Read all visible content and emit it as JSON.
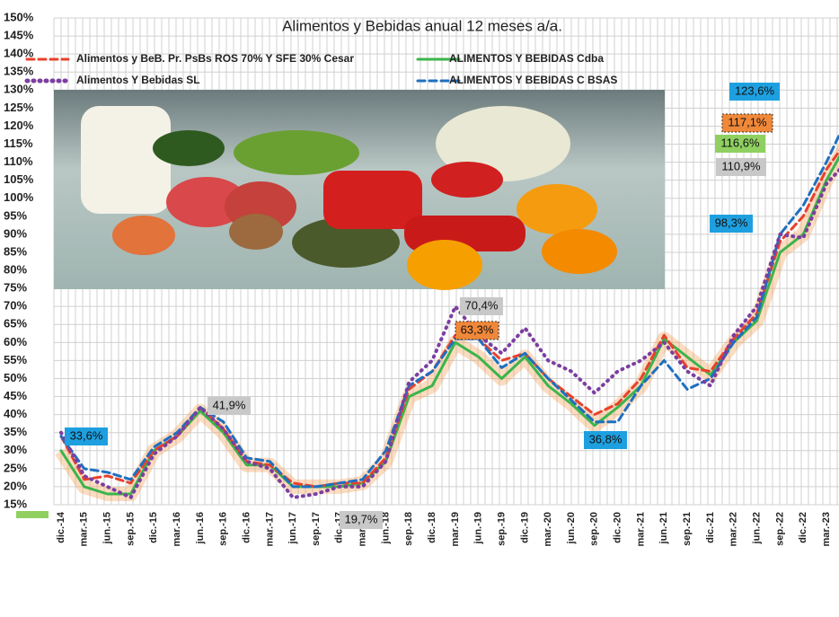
{
  "chart_data": {
    "type": "line",
    "title": "Alimentos y Bebidas anual 12 meses a/a.",
    "categories": [
      "dic.-14",
      "mar.-15",
      "jun.-15",
      "sep.-15",
      "dic.-15",
      "mar.-16",
      "jun.-16",
      "sep.-16",
      "dic.-16",
      "mar.-17",
      "jun.-17",
      "sep.-17",
      "dic.-17",
      "mar.-18",
      "jun.-18",
      "sep.-18",
      "dic.-18",
      "mar.-19",
      "jun.-19",
      "sep.-19",
      "dic.-19",
      "mar.-20",
      "jun.-20",
      "sep.-20",
      "dic.-20",
      "mar.-21",
      "jun.-21",
      "sep.-21",
      "dic.-21",
      "mar.-22",
      "jun.-22",
      "sep.-22",
      "dic.-22",
      "mar.-23",
      null
    ],
    "series": [
      {
        "name": "Alimentos y BeB. Pr. PsBs ROS 70% Y SFE 30% Cesar",
        "color": "#e8412c",
        "dash": "dashed",
        "values": [
          34,
          22,
          23,
          21,
          30,
          34,
          42,
          36,
          27,
          26,
          21,
          20,
          21,
          21,
          28,
          47,
          52,
          62,
          61,
          55,
          57,
          50,
          45,
          40,
          43,
          50,
          62,
          53,
          52,
          61,
          68,
          88,
          95,
          108,
          117.1
        ]
      },
      {
        "name": "ALIMENTOS Y BEBIDAS Cdba",
        "color": "#3cb44b",
        "dash": "solid",
        "values": [
          30,
          20,
          18,
          18,
          30,
          34,
          41,
          35,
          26,
          26,
          20,
          20,
          20,
          21,
          27,
          45,
          48,
          60,
          56,
          50,
          56,
          48,
          43,
          37,
          42,
          48,
          61,
          56,
          51,
          60,
          66,
          85,
          90,
          105,
          116.6
        ]
      },
      {
        "name": "Alimentos Y Bebidas SL",
        "color": "#7b3fa0",
        "dash": "dotted",
        "values": [
          35,
          23,
          20,
          17,
          29,
          34,
          42,
          36,
          27,
          25,
          17,
          18,
          20,
          20,
          27,
          49,
          55,
          70,
          62,
          57,
          64,
          55,
          52,
          46,
          52,
          55,
          60,
          52,
          48,
          62,
          70,
          90,
          89,
          104,
          110.9
        ]
      },
      {
        "name": "ALIMENTOS Y BEBIDAS C BSAS",
        "color": "#1f6fc0",
        "dash": "dashed",
        "values": [
          34,
          25,
          24,
          22,
          31,
          35,
          42,
          38,
          28,
          27,
          20,
          20,
          21,
          22,
          30,
          48,
          52,
          61,
          61,
          53,
          57,
          50,
          44,
          38,
          38,
          48,
          55,
          47,
          50,
          60,
          67,
          90,
          98,
          110,
          123.6
        ]
      }
    ],
    "annotations": [
      {
        "text": "33,6%",
        "color": "#1ea0e0"
      },
      {
        "text": "41,9%",
        "color": "#c8c8c8"
      },
      {
        "text": "19,7%",
        "color": "#c8c8c8"
      },
      {
        "text": "70,4%",
        "color": "#c8c8c8"
      },
      {
        "text": "63,3%",
        "color": "#f0883a"
      },
      {
        "text": "36,8%",
        "color": "#1ea0e0"
      },
      {
        "text": "98,3%",
        "color": "#1ea0e0"
      },
      {
        "text": "123,6%",
        "color": "#1ea0e0"
      },
      {
        "text": "117,1%",
        "color": "#f0883a"
      },
      {
        "text": "116,6%",
        "color": "#8fd060"
      },
      {
        "text": "110,9%",
        "color": "#c8c8c8"
      }
    ],
    "ylim": [
      15,
      150
    ],
    "yticks": [
      {
        "value": 15,
        "label": "15%"
      },
      {
        "value": 20,
        "label": "20%"
      },
      {
        "value": 25,
        "label": "25%"
      },
      {
        "value": 30,
        "label": "30%"
      },
      {
        "value": 35,
        "label": "35%"
      },
      {
        "value": 40,
        "label": "40%"
      },
      {
        "value": 45,
        "label": "45%"
      },
      {
        "value": 50,
        "label": "50%"
      },
      {
        "value": 55,
        "label": "55%"
      },
      {
        "value": 60,
        "label": "60%"
      },
      {
        "value": 65,
        "label": "65%"
      },
      {
        "value": 70,
        "label": "70%"
      },
      {
        "value": 75,
        "label": "75%"
      },
      {
        "value": 80,
        "label": "80%"
      },
      {
        "value": 85,
        "label": "85%"
      },
      {
        "value": 90,
        "label": "90%"
      },
      {
        "value": 95,
        "label": "95%"
      },
      {
        "value": 100,
        "label": "100%"
      },
      {
        "value": 105,
        "label": "105%"
      },
      {
        "value": 110,
        "label": "110%"
      },
      {
        "value": 115,
        "label": "115%"
      },
      {
        "value": 120,
        "label": "120%"
      },
      {
        "value": 125,
        "label": "125%"
      },
      {
        "value": 130,
        "label": "130%"
      },
      {
        "value": 135,
        "label": "135%"
      },
      {
        "value": 140,
        "label": "140%"
      },
      {
        "value": 145,
        "label": "145%"
      },
      {
        "value": 150,
        "label": "150%"
      }
    ],
    "grid": true
  }
}
